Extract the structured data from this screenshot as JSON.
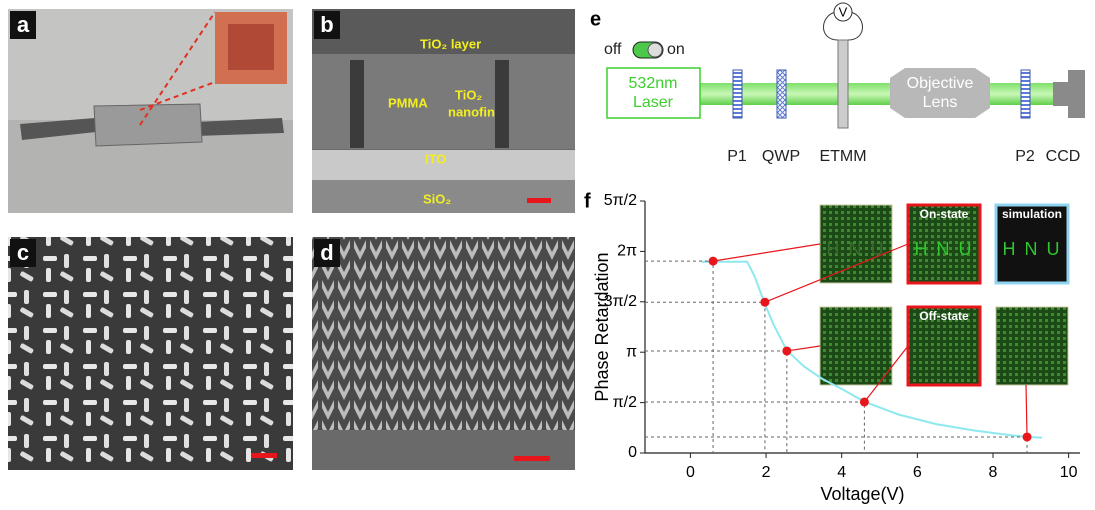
{
  "panel_labels": [
    "a",
    "b",
    "c",
    "d",
    "e",
    "f"
  ],
  "panel_b": {
    "labels": [
      "TiO₂ layer",
      "PMMA",
      "TiO₂",
      "nanofin",
      "ITO",
      "SiO₂"
    ]
  },
  "panel_e": {
    "switch_off": "off",
    "switch_on": "on",
    "laser": [
      "532nm",
      "Laser"
    ],
    "voltmeter": "V",
    "lens": [
      "Objective",
      "Lens"
    ],
    "components": [
      "P1",
      "QWP",
      "ETMM",
      "P2",
      "CCD"
    ]
  },
  "chart_data": {
    "type": "line",
    "xlabel": "Voltage(V)",
    "ylabel": "Phase Retardation",
    "xlim": [
      -1.2,
      10.3
    ],
    "ylim": [
      0,
      7.854
    ],
    "xticks": [
      0,
      2,
      4,
      6,
      8,
      10
    ],
    "yticks": [
      0,
      {
        "value": 1.5708,
        "label": "π/2"
      },
      {
        "value": 3.1416,
        "label": "π"
      },
      {
        "value": 4.7124,
        "label": "3π/2"
      },
      {
        "value": 6.2832,
        "label": "2π"
      },
      {
        "value": 7.854,
        "label": "5π/2"
      }
    ],
    "series": [
      {
        "color": "#8ee9ee",
        "style": "line",
        "x": [
          0.3,
          1.5,
          1.7,
          1.95,
          2.2,
          2.55,
          3.0,
          3.5,
          4.0,
          4.6,
          5.5,
          6.5,
          7.5,
          8.5,
          8.9,
          9.3
        ],
        "values": [
          5.96,
          5.96,
          5.5,
          4.7,
          4.0,
          3.2,
          2.7,
          2.3,
          2.0,
          1.6,
          1.2,
          0.9,
          0.7,
          0.55,
          0.5,
          0.48
        ]
      },
      {
        "color": "#e8161b",
        "style": "markers",
        "x": [
          0.6,
          1.97,
          2.55,
          4.6,
          8.9
        ],
        "values": [
          5.98,
          4.7,
          3.18,
          1.59,
          0.5
        ]
      }
    ],
    "insets": [
      {
        "text": "H N U",
        "border": "#c8c8a0"
      },
      {
        "label": "On-state",
        "text": "H N U",
        "border": "#e8161b"
      },
      {
        "label": "simulation",
        "text": "H N U",
        "border": "#8fd3f0"
      },
      {
        "border": "#c8c8a0"
      },
      {
        "label": "Off-state",
        "border": "#e8161b"
      },
      {
        "border": "#c8c8a0"
      }
    ]
  }
}
